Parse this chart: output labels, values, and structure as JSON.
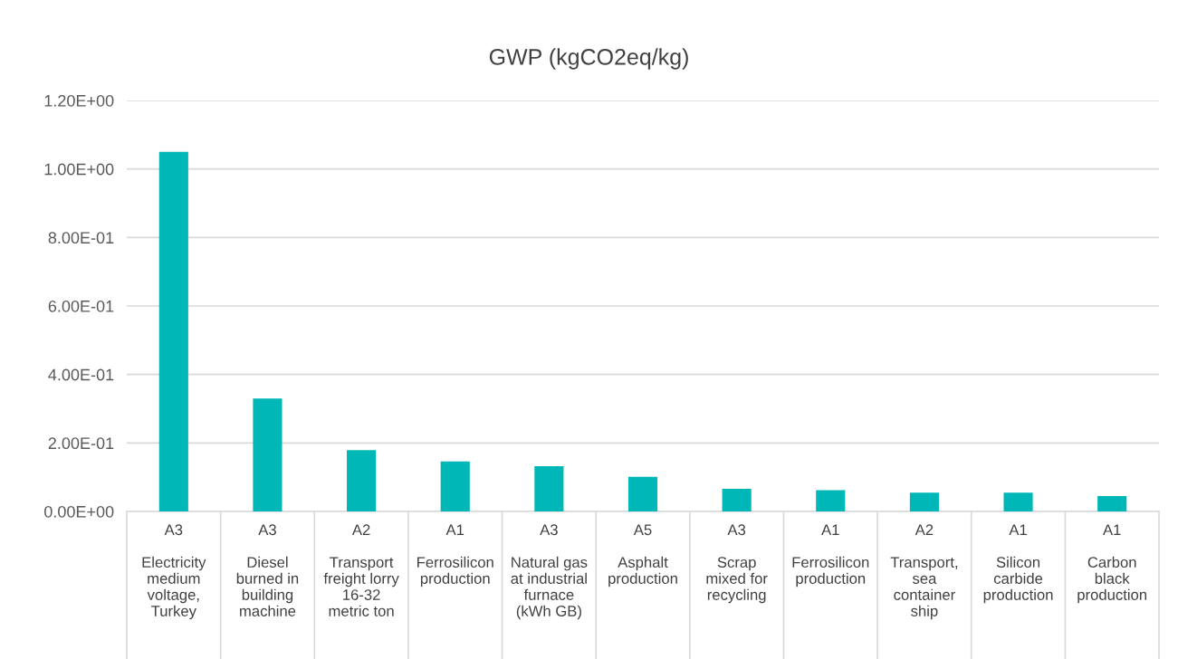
{
  "chart_data": {
    "type": "bar",
    "title": "GWP (kgCO2eq/kg)",
    "categories": [
      "A3\n\nElectricity\nmedium\nvoltage,\nTurkey",
      "A3\n\nDiesel\nburned in\nbuilding\nmachine",
      "A2\n\nTransport\nfreight lorry\n16-32\nmetric ton",
      "A1\n\nFerrosilicon\nproduction",
      "A3\n\nNatural gas\nat industrial\nfurnace\n(kWh GB)",
      "A5\n\nAsphalt\nproduction",
      "A3\n\nScrap\nmixed for\nrecycling",
      "A1\n\nFerrosilicon\nproduction",
      "A2\n\nTransport,\nsea\ncontainer\nship",
      "A1\n\nSilicon\ncarbide\nproduction",
      "A1\n\nCarbon\nblack\nproduction"
    ],
    "values": [
      1.05,
      0.33,
      0.179,
      0.146,
      0.132,
      0.101,
      0.066,
      0.062,
      0.055,
      0.055,
      0.045
    ],
    "color": "#00b7b7",
    "ylim": [
      0,
      1.2
    ],
    "yticks": [
      {
        "value": 0,
        "label": "0.00E+00"
      },
      {
        "value": 0.2,
        "label": "2.00E-01"
      },
      {
        "value": 0.4,
        "label": "4.00E-01"
      },
      {
        "value": 0.6,
        "label": "6.00E-01"
      },
      {
        "value": 0.8,
        "label": "8.00E-01"
      },
      {
        "value": 1.0,
        "label": "1.00E+00"
      },
      {
        "value": 1.2,
        "label": "1.20E+00"
      }
    ],
    "grid": "y"
  }
}
